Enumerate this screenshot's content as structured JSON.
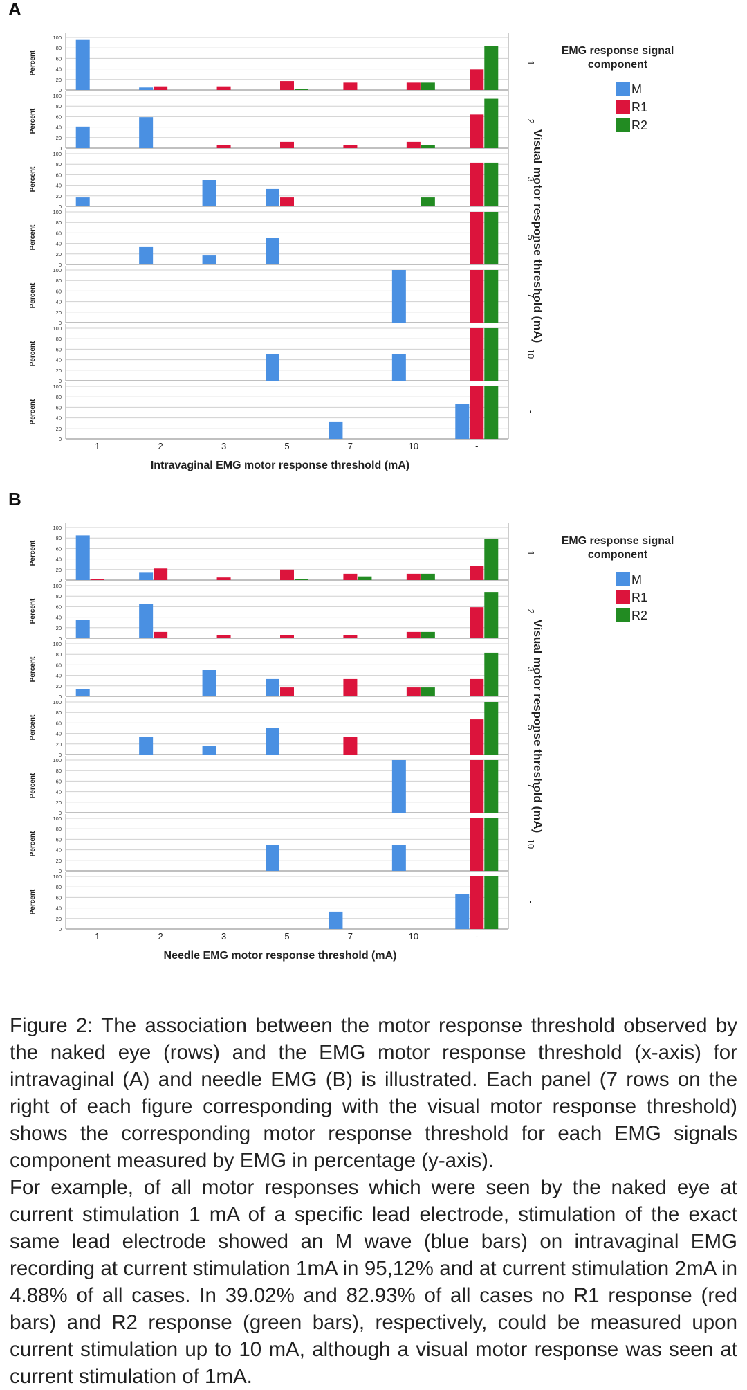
{
  "figure": {
    "colors": {
      "M": "#4a90e2",
      "R1": "#dc143c",
      "R2": "#228b22"
    },
    "ylabel": "Percent",
    "y_ticks": [
      0,
      20,
      40,
      60,
      80,
      100
    ],
    "row_axis_title": "Visual motor response threshold (mA)",
    "legend_title_line1": "EMG response signal",
    "legend_title_line2": "component",
    "legend_labels": [
      "M",
      "R1",
      "R2"
    ]
  },
  "chart_data": [
    {
      "type": "bar",
      "panel_label": "A",
      "title": "",
      "xlabel": "Intravaginal EMG motor response threshold (mA)",
      "ylabel": "Percent",
      "ylim": [
        0,
        100
      ],
      "categories": [
        "1",
        "2",
        "3",
        "5",
        "7",
        "10",
        "-"
      ],
      "series_names": [
        "M",
        "R1",
        "R2"
      ],
      "legend": "right",
      "grid": "horizontal",
      "rows": [
        {
          "label": "1",
          "values": [
            [
              95.12,
              0,
              0
            ],
            [
              4.88,
              7,
              0
            ],
            [
              0,
              7,
              0
            ],
            [
              0,
              17,
              2
            ],
            [
              0,
              14,
              0
            ],
            [
              0,
              14,
              14
            ],
            [
              0,
              39.02,
              82.93
            ]
          ]
        },
        {
          "label": "2",
          "values": [
            [
              41,
              0,
              0
            ],
            [
              59,
              0,
              0
            ],
            [
              0,
              6,
              0
            ],
            [
              0,
              12,
              0
            ],
            [
              0,
              6,
              0
            ],
            [
              0,
              12,
              6
            ],
            [
              0,
              64,
              94
            ]
          ]
        },
        {
          "label": "3",
          "values": [
            [
              17,
              0,
              0
            ],
            [
              0,
              0,
              0
            ],
            [
              50,
              0,
              0
            ],
            [
              33,
              17,
              0
            ],
            [
              0,
              0,
              0
            ],
            [
              0,
              0,
              17
            ],
            [
              0,
              83,
              83
            ]
          ]
        },
        {
          "label": "5",
          "values": [
            [
              0,
              0,
              0
            ],
            [
              33,
              0,
              0
            ],
            [
              17,
              0,
              0
            ],
            [
              50,
              0,
              0
            ],
            [
              0,
              0,
              0
            ],
            [
              0,
              0,
              0
            ],
            [
              0,
              100,
              100
            ]
          ]
        },
        {
          "label": "7",
          "values": [
            [
              0,
              0,
              0
            ],
            [
              0,
              0,
              0
            ],
            [
              0,
              0,
              0
            ],
            [
              0,
              0,
              0
            ],
            [
              0,
              0,
              0
            ],
            [
              100,
              0,
              0
            ],
            [
              0,
              100,
              100
            ]
          ]
        },
        {
          "label": "10",
          "values": [
            [
              0,
              0,
              0
            ],
            [
              0,
              0,
              0
            ],
            [
              0,
              0,
              0
            ],
            [
              50,
              0,
              0
            ],
            [
              0,
              0,
              0
            ],
            [
              50,
              0,
              0
            ],
            [
              0,
              100,
              100
            ]
          ]
        },
        {
          "label": "-",
          "values": [
            [
              0,
              0,
              0
            ],
            [
              0,
              0,
              0
            ],
            [
              0,
              0,
              0
            ],
            [
              0,
              0,
              0
            ],
            [
              33,
              0,
              0
            ],
            [
              0,
              0,
              0
            ],
            [
              67,
              100,
              100
            ]
          ]
        }
      ]
    },
    {
      "type": "bar",
      "panel_label": "B",
      "title": "",
      "xlabel": "Needle EMG motor response threshold (mA)",
      "ylabel": "Percent",
      "ylim": [
        0,
        100
      ],
      "categories": [
        "1",
        "2",
        "3",
        "5",
        "7",
        "10",
        "-"
      ],
      "series_names": [
        "M",
        "R1",
        "R2"
      ],
      "legend": "right",
      "grid": "horizontal",
      "rows": [
        {
          "label": "1",
          "values": [
            [
              85,
              2,
              0
            ],
            [
              14,
              22,
              0
            ],
            [
              0,
              5,
              0
            ],
            [
              0,
              20,
              2
            ],
            [
              0,
              12,
              7
            ],
            [
              0,
              12,
              12
            ],
            [
              0,
              27,
              78
            ]
          ]
        },
        {
          "label": "2",
          "values": [
            [
              35,
              0,
              0
            ],
            [
              65,
              12,
              0
            ],
            [
              0,
              6,
              0
            ],
            [
              0,
              6,
              0
            ],
            [
              0,
              6,
              0
            ],
            [
              0,
              12,
              12
            ],
            [
              0,
              59,
              88
            ]
          ]
        },
        {
          "label": "3",
          "values": [
            [
              14,
              0,
              0
            ],
            [
              0,
              0,
              0
            ],
            [
              50,
              0,
              0
            ],
            [
              33,
              17,
              0
            ],
            [
              0,
              33,
              0
            ],
            [
              0,
              17,
              17
            ],
            [
              0,
              33,
              83
            ]
          ]
        },
        {
          "label": "5",
          "values": [
            [
              0,
              0,
              0
            ],
            [
              33,
              0,
              0
            ],
            [
              17,
              0,
              0
            ],
            [
              50,
              0,
              0
            ],
            [
              0,
              33,
              0
            ],
            [
              0,
              0,
              0
            ],
            [
              0,
              67,
              100
            ]
          ]
        },
        {
          "label": "7",
          "values": [
            [
              0,
              0,
              0
            ],
            [
              0,
              0,
              0
            ],
            [
              0,
              0,
              0
            ],
            [
              0,
              0,
              0
            ],
            [
              0,
              0,
              0
            ],
            [
              100,
              0,
              0
            ],
            [
              0,
              100,
              100
            ]
          ]
        },
        {
          "label": "10",
          "values": [
            [
              0,
              0,
              0
            ],
            [
              0,
              0,
              0
            ],
            [
              0,
              0,
              0
            ],
            [
              50,
              0,
              0
            ],
            [
              0,
              0,
              0
            ],
            [
              50,
              0,
              0
            ],
            [
              0,
              100,
              100
            ]
          ]
        },
        {
          "label": "-",
          "values": [
            [
              0,
              0,
              0
            ],
            [
              0,
              0,
              0
            ],
            [
              0,
              0,
              0
            ],
            [
              0,
              0,
              0
            ],
            [
              33,
              0,
              0
            ],
            [
              0,
              0,
              0
            ],
            [
              67,
              100,
              100
            ]
          ]
        }
      ]
    }
  ],
  "caption": {
    "paragraph1": "Figure 2: The association between the motor response threshold observed by the naked eye (rows) and the EMG motor response threshold (x-axis) for intravaginal (A) and needle EMG (B) is illustrated. Each panel (7 rows on the right of each figure corresponding with the visual motor response threshold) shows the corresponding motor response threshold for each EMG signals component measured by EMG in percentage (y-axis).",
    "paragraph2": "For example, of all motor responses which were seen by the naked eye at current stimulation 1 mA of a specific lead electrode, stimulation of the exact same lead electrode showed an M wave (blue bars) on intravaginal EMG recording at current stimulation 1mA in 95,12%  and at current stimulation 2mA in 4.88% of all cases. In 39.02% and 82.93% of all cases no R1 response (red bars) and R2 response (green bars), respectively, could be measured upon current stimulation up to 10 mA, although a visual motor response was seen at current stimulation of 1mA."
  }
}
